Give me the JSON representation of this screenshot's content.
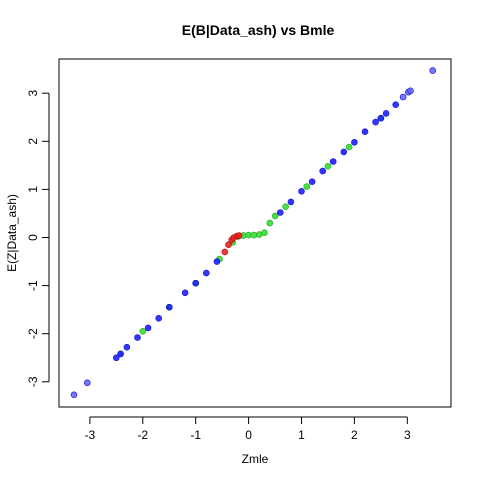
{
  "chart_data": {
    "type": "scatter",
    "title": "E(B|Data_ash) vs Bmle",
    "xlabel": "Zmle",
    "ylabel": "E(Z|Data_ash)",
    "xlim": [
      -3.5,
      3.7
    ],
    "ylim": [
      -3.5,
      3.7
    ],
    "xticks": [
      -3,
      -2,
      -1,
      0,
      1,
      2,
      3
    ],
    "yticks": [
      -3,
      -2,
      -1,
      0,
      1,
      2,
      3
    ],
    "grid": false,
    "legend": "none",
    "colors": {
      "blue": "#1f1fff",
      "green": "#33dd33",
      "red": "#ee2222",
      "outlier_blue": "#6666ff"
    },
    "series": [
      {
        "color": "blue",
        "points": [
          [
            -3.3,
            -3.27
          ],
          [
            -3.05,
            -3.02
          ],
          [
            -2.5,
            -2.5
          ],
          [
            -2.42,
            -2.42
          ],
          [
            -2.3,
            -2.28
          ],
          [
            -2.1,
            -2.08
          ],
          [
            -1.9,
            -1.88
          ],
          [
            -1.7,
            -1.68
          ],
          [
            -1.5,
            -1.45
          ],
          [
            -1.2,
            -1.15
          ],
          [
            -1.0,
            -0.95
          ],
          [
            -0.8,
            -0.74
          ],
          [
            -0.6,
            -0.5
          ],
          [
            0.6,
            0.52
          ],
          [
            0.8,
            0.74
          ],
          [
            1.0,
            0.96
          ],
          [
            1.2,
            1.16
          ],
          [
            1.4,
            1.38
          ],
          [
            1.6,
            1.58
          ],
          [
            1.8,
            1.78
          ],
          [
            2.0,
            1.98
          ],
          [
            2.2,
            2.2
          ],
          [
            2.4,
            2.4
          ],
          [
            2.5,
            2.48
          ],
          [
            2.6,
            2.58
          ],
          [
            2.78,
            2.76
          ],
          [
            2.92,
            2.92
          ],
          [
            3.02,
            3.02
          ],
          [
            3.06,
            3.05
          ],
          [
            3.48,
            3.47
          ]
        ]
      },
      {
        "color": "green",
        "points": [
          [
            -2.42,
            -2.42
          ],
          [
            -2.0,
            -1.95
          ],
          [
            -1.5,
            -1.45
          ],
          [
            -1.0,
            -0.95
          ],
          [
            -0.55,
            -0.45
          ],
          [
            -0.3,
            -0.1
          ],
          [
            -0.2,
            0.02
          ],
          [
            -0.1,
            0.04
          ],
          [
            0.0,
            0.05
          ],
          [
            0.1,
            0.05
          ],
          [
            0.2,
            0.06
          ],
          [
            0.3,
            0.1
          ],
          [
            0.4,
            0.3
          ],
          [
            0.5,
            0.45
          ],
          [
            0.7,
            0.64
          ],
          [
            1.1,
            1.06
          ],
          [
            1.5,
            1.48
          ],
          [
            1.9,
            1.88
          ],
          [
            2.5,
            2.48
          ]
        ]
      },
      {
        "color": "red",
        "points": [
          [
            -0.45,
            -0.3
          ],
          [
            -0.38,
            -0.15
          ],
          [
            -0.32,
            -0.05
          ],
          [
            -0.28,
            0.0
          ],
          [
            -0.22,
            0.03
          ],
          [
            -0.18,
            0.04
          ]
        ]
      }
    ]
  }
}
